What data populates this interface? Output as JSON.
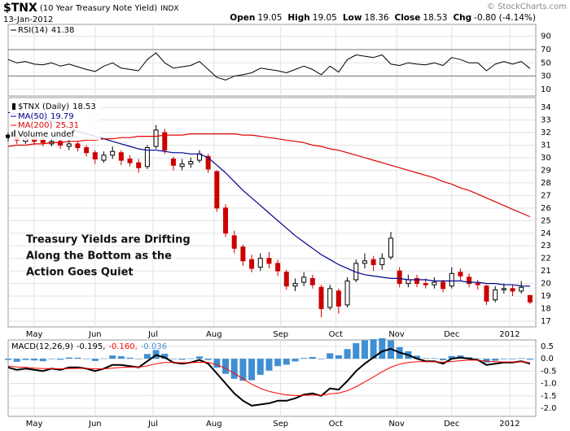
{
  "header": {
    "symbol": "$TNX",
    "description": "(10 Year Treasury Note Yield)",
    "exchange": "INDX",
    "date": "13-Jan-2012",
    "quote": [
      {
        "name": "Open",
        "text": "19.05"
      },
      {
        "name": "High",
        "text": "19.05"
      },
      {
        "name": "Low",
        "text": "18.36"
      },
      {
        "name": "Close",
        "text": "18.53"
      },
      {
        "name": "Chg",
        "text": "-0.80 (-4.14%)"
      }
    ],
    "copyright": "© StockCharts.com"
  },
  "chart_data": [
    {
      "type": "line",
      "name": "RSI(14)",
      "color": "#000000",
      "grid": true,
      "x": [
        0,
        3,
        6,
        9,
        12,
        15,
        18,
        21,
        24,
        27,
        30,
        33,
        36,
        39,
        42,
        45,
        48,
        51,
        54,
        57,
        60,
        63,
        66,
        69,
        72,
        75,
        78,
        81,
        84,
        87,
        90,
        93,
        96,
        99,
        102,
        105,
        108,
        111,
        114,
        117,
        120,
        123,
        126,
        129,
        132,
        135,
        138,
        141,
        144,
        147,
        150,
        153,
        156,
        159,
        162,
        165,
        168,
        171,
        174,
        177,
        180
      ],
      "values": [
        55,
        50,
        52,
        48,
        47,
        50,
        45,
        48,
        44,
        40,
        37,
        45,
        50,
        42,
        40,
        38,
        55,
        65,
        50,
        42,
        44,
        46,
        52,
        40,
        28,
        24,
        30,
        32,
        35,
        42,
        40,
        38,
        35,
        40,
        45,
        40,
        32,
        45,
        36,
        55,
        62,
        60,
        58,
        62,
        48,
        46,
        50,
        48,
        47,
        50,
        46,
        58,
        55,
        50,
        50,
        38,
        48,
        52,
        48,
        52,
        41.38
      ],
      "xlim": [
        0,
        182
      ],
      "ylim": [
        0,
        108
      ],
      "yticks": [
        10,
        30,
        50,
        70,
        90
      ],
      "reference_lines": [
        70,
        30
      ]
    },
    {
      "type": "candlestick",
      "name": "$TNX (Daily)",
      "up_color": "#000000",
      "down_color": "#cc0000",
      "grid": true,
      "x": [
        0,
        3,
        6,
        9,
        12,
        15,
        18,
        21,
        24,
        27,
        30,
        33,
        36,
        39,
        42,
        45,
        48,
        51,
        54,
        57,
        60,
        63,
        66,
        69,
        72,
        75,
        78,
        81,
        84,
        87,
        90,
        93,
        96,
        99,
        102,
        105,
        108,
        111,
        114,
        117,
        120,
        123,
        126,
        129,
        132,
        135,
        138,
        141,
        144,
        147,
        150,
        153,
        156,
        159,
        162,
        165,
        168,
        171,
        174,
        177,
        180
      ],
      "open": [
        31.8,
        31.6,
        31.3,
        31.5,
        31.4,
        31.1,
        31.3,
        30.9,
        31.1,
        30.8,
        30.4,
        29.8,
        30.2,
        30.4,
        29.9,
        29.6,
        29.3,
        30.9,
        32.0,
        29.9,
        29.3,
        29.5,
        29.8,
        30.1,
        28.9,
        26.0,
        23.8,
        22.9,
        21.9,
        21.3,
        22.0,
        21.6,
        20.9,
        19.8,
        20.1,
        20.4,
        19.7,
        18.1,
        19.4,
        18.3,
        20.3,
        21.6,
        21.9,
        21.5,
        22.1,
        21.0,
        20.0,
        20.4,
        20.0,
        19.9,
        20.1,
        19.8,
        20.9,
        20.5,
        20.0,
        19.8,
        18.7,
        19.5,
        19.6,
        19.4,
        19.05
      ],
      "high": [
        32.0,
        31.8,
        31.8,
        31.7,
        31.6,
        31.6,
        31.5,
        31.4,
        31.3,
        31.0,
        30.6,
        30.5,
        30.9,
        30.6,
        30.2,
        29.9,
        31.0,
        32.6,
        32.3,
        30.1,
        29.9,
        30.0,
        30.6,
        30.3,
        29.0,
        26.3,
        24.2,
        23.1,
        22.3,
        22.4,
        22.5,
        21.9,
        21.1,
        20.4,
        20.9,
        20.7,
        19.9,
        19.9,
        19.6,
        20.5,
        21.9,
        22.4,
        22.2,
        22.4,
        24.1,
        21.3,
        20.7,
        20.7,
        20.4,
        20.5,
        20.3,
        21.3,
        21.2,
        20.8,
        20.3,
        19.9,
        19.8,
        20.0,
        19.9,
        20.2,
        19.05
      ],
      "low": [
        31.3,
        31.1,
        31.1,
        31.0,
        30.9,
        30.9,
        30.7,
        30.6,
        30.5,
        30.1,
        29.5,
        29.6,
        29.9,
        29.4,
        29.3,
        28.8,
        29.1,
        30.7,
        30.3,
        29.0,
        29.0,
        29.2,
        29.6,
        28.8,
        25.7,
        23.7,
        22.4,
        21.4,
        20.9,
        21.0,
        21.2,
        20.6,
        19.5,
        19.4,
        19.8,
        19.6,
        17.3,
        17.9,
        17.6,
        18.1,
        20.1,
        21.2,
        21.0,
        21.1,
        21.9,
        19.7,
        19.7,
        19.7,
        19.6,
        19.6,
        19.3,
        19.6,
        20.2,
        19.7,
        19.5,
        18.3,
        18.5,
        19.2,
        19.0,
        19.2,
        18.36
      ],
      "close": [
        31.6,
        31.4,
        31.5,
        31.3,
        31.2,
        31.3,
        31.0,
        31.1,
        30.8,
        30.4,
        29.9,
        30.2,
        30.5,
        29.8,
        29.6,
        29.2,
        30.8,
        32.2,
        30.6,
        29.4,
        29.5,
        29.7,
        30.3,
        29.1,
        26.0,
        24.0,
        22.8,
        21.8,
        21.2,
        22.0,
        21.6,
        21.0,
        19.8,
        20.0,
        20.5,
        19.9,
        18.0,
        19.6,
        18.2,
        20.2,
        21.6,
        21.8,
        21.5,
        22.0,
        23.6,
        20.0,
        20.3,
        20.0,
        19.9,
        20.1,
        19.6,
        20.8,
        20.6,
        20.0,
        19.9,
        18.6,
        19.5,
        19.6,
        19.4,
        19.7,
        18.53
      ],
      "series": [
        {
          "name": "MA(50)",
          "color": "#00008b",
          "values": [
            33.6,
            33.5,
            33.4,
            33.3,
            33.1,
            32.9,
            32.7,
            32.4,
            32.1,
            31.9,
            31.7,
            31.5,
            31.3,
            31.1,
            30.9,
            30.7,
            30.6,
            30.6,
            30.5,
            30.4,
            30.4,
            30.3,
            30.3,
            30.0,
            29.4,
            28.8,
            28.1,
            27.4,
            26.8,
            26.2,
            25.6,
            25.0,
            24.4,
            23.8,
            23.3,
            22.8,
            22.3,
            21.9,
            21.5,
            21.2,
            20.9,
            20.7,
            20.6,
            20.5,
            20.4,
            20.4,
            20.3,
            20.3,
            20.3,
            20.2,
            20.2,
            20.2,
            20.2,
            20.1,
            20.1,
            20.0,
            20.0,
            19.9,
            19.9,
            19.8,
            19.79
          ]
        },
        {
          "name": "MA(200)",
          "color": "#e00000",
          "values": [
            30.9,
            31.0,
            31.0,
            31.1,
            31.1,
            31.2,
            31.2,
            31.3,
            31.3,
            31.4,
            31.4,
            31.5,
            31.5,
            31.6,
            31.6,
            31.7,
            31.7,
            31.7,
            31.8,
            31.8,
            31.8,
            31.9,
            31.9,
            31.9,
            31.9,
            31.9,
            31.9,
            31.8,
            31.8,
            31.7,
            31.6,
            31.5,
            31.4,
            31.3,
            31.2,
            31.0,
            30.9,
            30.7,
            30.6,
            30.4,
            30.2,
            30.0,
            29.8,
            29.6,
            29.4,
            29.2,
            29.0,
            28.8,
            28.6,
            28.4,
            28.1,
            27.9,
            27.6,
            27.4,
            27.1,
            26.8,
            26.5,
            26.2,
            25.9,
            25.6,
            25.31
          ]
        }
      ],
      "legend_extra": "Volume undef",
      "annotation": [
        "Treasury Yields are Drifting",
        "Along the Bottom as the",
        "Action Goes Quiet"
      ],
      "xlim": [
        0,
        182
      ],
      "ylim": [
        16.55,
        34.78
      ],
      "yticks": [
        17,
        18,
        19,
        20,
        21,
        22,
        23,
        24,
        25,
        26,
        27,
        28,
        29,
        30,
        31,
        32,
        33,
        34
      ],
      "xticks": [
        {
          "value": 9,
          "label": "May"
        },
        {
          "value": 30,
          "label": "Jun"
        },
        {
          "value": 50,
          "label": "Jul"
        },
        {
          "value": 71,
          "label": "Aug"
        },
        {
          "value": 94,
          "label": "Sep"
        },
        {
          "value": 113,
          "label": "Oct"
        },
        {
          "value": 134,
          "label": "Nov"
        },
        {
          "value": 153,
          "label": "Dec"
        },
        {
          "value": 173,
          "label": "2012"
        }
      ]
    },
    {
      "type": "line",
      "grid": true,
      "legend_separator": ",",
      "x": [
        0,
        3,
        6,
        9,
        12,
        15,
        18,
        21,
        24,
        27,
        30,
        33,
        36,
        39,
        42,
        45,
        48,
        51,
        54,
        57,
        60,
        63,
        66,
        69,
        72,
        75,
        78,
        81,
        84,
        87,
        90,
        93,
        96,
        99,
        102,
        105,
        108,
        111,
        114,
        117,
        120,
        123,
        126,
        129,
        132,
        135,
        138,
        141,
        144,
        147,
        150,
        153,
        156,
        159,
        162,
        165,
        168,
        171,
        174,
        177,
        180
      ],
      "series": [
        {
          "name": "MACD(12,26,9)",
          "color": "#000000",
          "last_label": "-0.195",
          "values": [
            -0.35,
            -0.45,
            -0.4,
            -0.45,
            -0.5,
            -0.4,
            -0.45,
            -0.35,
            -0.35,
            -0.4,
            -0.5,
            -0.4,
            -0.25,
            -0.25,
            -0.3,
            -0.35,
            -0.1,
            0.15,
            0.05,
            -0.15,
            -0.2,
            -0.15,
            -0.05,
            -0.2,
            -0.6,
            -1.0,
            -1.4,
            -1.7,
            -1.9,
            -1.85,
            -1.8,
            -1.7,
            -1.7,
            -1.6,
            -1.45,
            -1.4,
            -1.5,
            -1.2,
            -1.25,
            -0.9,
            -0.5,
            -0.2,
            0.05,
            0.3,
            0.4,
            0.25,
            0.15,
            0.0,
            -0.1,
            -0.1,
            -0.2,
            0.0,
            0.05,
            0.0,
            -0.05,
            -0.25,
            -0.2,
            -0.15,
            -0.15,
            -0.1,
            -0.195
          ]
        },
        {
          "color": "#ff0000",
          "last_label": "-0.160",
          "values": [
            -0.3,
            -0.33,
            -0.35,
            -0.38,
            -0.4,
            -0.4,
            -0.41,
            -0.4,
            -0.39,
            -0.39,
            -0.41,
            -0.41,
            -0.38,
            -0.35,
            -0.34,
            -0.34,
            -0.29,
            -0.2,
            -0.15,
            -0.15,
            -0.16,
            -0.16,
            -0.14,
            -0.15,
            -0.24,
            -0.39,
            -0.59,
            -0.81,
            -1.03,
            -1.2,
            -1.32,
            -1.4,
            -1.46,
            -1.49,
            -1.48,
            -1.47,
            -1.48,
            -1.42,
            -1.39,
            -1.29,
            -1.13,
            -0.94,
            -0.74,
            -0.53,
            -0.34,
            -0.22,
            -0.15,
            -0.12,
            -0.12,
            -0.12,
            -0.14,
            -0.11,
            -0.08,
            -0.06,
            -0.06,
            -0.1,
            -0.12,
            -0.13,
            -0.13,
            -0.12,
            -0.16
          ]
        },
        {
          "color": "#3f8fd2",
          "style": "bar",
          "last_label": "-0.036",
          "values": [
            -0.05,
            -0.12,
            -0.05,
            -0.07,
            -0.1,
            0.0,
            -0.04,
            0.05,
            0.04,
            -0.01,
            -0.09,
            0.01,
            0.13,
            0.1,
            0.04,
            -0.01,
            0.19,
            0.35,
            0.2,
            0.0,
            -0.04,
            0.01,
            0.09,
            -0.05,
            -0.36,
            -0.61,
            -0.81,
            -0.89,
            -0.87,
            -0.65,
            -0.48,
            -0.3,
            -0.24,
            -0.11,
            0.03,
            0.07,
            -0.02,
            0.22,
            0.14,
            0.39,
            0.63,
            0.74,
            0.79,
            0.83,
            0.74,
            0.47,
            0.3,
            0.12,
            0.02,
            0.02,
            -0.06,
            0.11,
            0.13,
            0.06,
            0.01,
            -0.15,
            -0.08,
            -0.02,
            -0.02,
            0.02,
            -0.036
          ]
        }
      ],
      "xlim": [
        0,
        182
      ],
      "ylim": [
        -2.33,
        0.76
      ],
      "yticks": [
        0.5,
        {
          "value": 0,
          "label": "0.0"
        },
        -0.5,
        {
          "value": -1,
          "label": "-1.0"
        },
        -1.5,
        {
          "value": -2,
          "label": "-2.0"
        }
      ],
      "xticks": [
        {
          "value": 9,
          "label": "May"
        },
        {
          "value": 30,
          "label": "Jun"
        },
        {
          "value": 50,
          "label": "Jul"
        },
        {
          "value": 71,
          "label": "Aug"
        },
        {
          "value": 94,
          "label": "Sep"
        },
        {
          "value": 113,
          "label": "Oct"
        },
        {
          "value": 134,
          "label": "Nov"
        },
        {
          "value": 153,
          "label": "Dec"
        },
        {
          "value": 173,
          "label": "2012"
        }
      ]
    }
  ]
}
